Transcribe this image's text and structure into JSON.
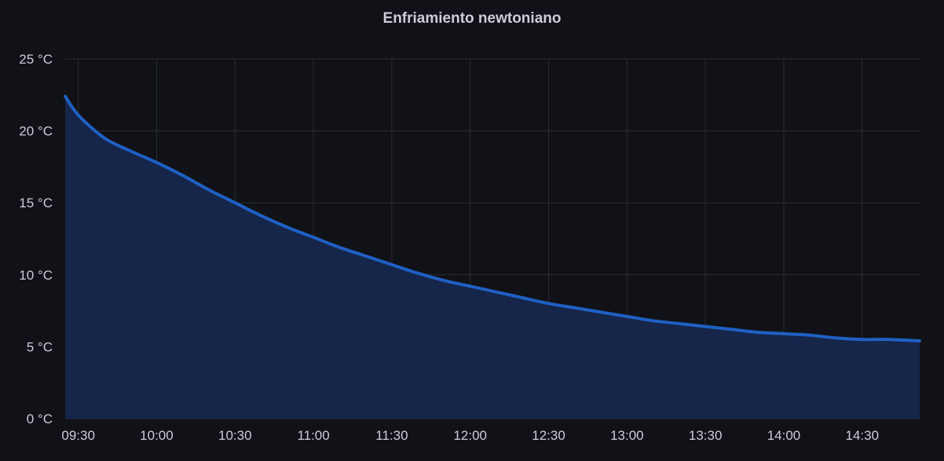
{
  "panel": {
    "title": "Enfriamiento newtoniano"
  },
  "chart_data": {
    "type": "area",
    "title": "Enfriamiento newtoniano",
    "xlabel": "",
    "ylabel": "",
    "unit": "°C",
    "x_range": [
      "09:25",
      "14:52"
    ],
    "ylim": [
      0,
      25
    ],
    "grid": true,
    "legend": "none",
    "x_ticks": [
      "09:30",
      "10:00",
      "10:30",
      "11:00",
      "11:30",
      "12:00",
      "12:30",
      "13:00",
      "13:30",
      "14:00",
      "14:30"
    ],
    "y_ticks": [
      "0 °C",
      "5 °C",
      "10 °C",
      "15 °C",
      "20 °C",
      "25 °C"
    ],
    "line_color": "#1f60c4",
    "fill_color": "#16254a",
    "series": [
      {
        "x": [
          "09:25",
          "09:30",
          "09:40",
          "09:50",
          "10:00",
          "10:10",
          "10:20",
          "10:30",
          "10:40",
          "10:50",
          "11:00",
          "11:10",
          "11:20",
          "11:30",
          "11:40",
          "11:50",
          "12:00",
          "12:10",
          "12:20",
          "12:30",
          "12:40",
          "12:50",
          "13:00",
          "13:10",
          "13:20",
          "13:30",
          "13:40",
          "13:50",
          "14:00",
          "14:10",
          "14:20",
          "14:30",
          "14:40",
          "14:52"
        ],
        "values": [
          22.4,
          21.1,
          19.5,
          18.6,
          17.8,
          16.9,
          15.9,
          15.0,
          14.1,
          13.3,
          12.6,
          11.9,
          11.3,
          10.7,
          10.1,
          9.6,
          9.2,
          8.8,
          8.4,
          8.0,
          7.7,
          7.4,
          7.1,
          6.8,
          6.6,
          6.4,
          6.2,
          6.0,
          5.9,
          5.8,
          5.6,
          5.5,
          5.5,
          5.4
        ]
      }
    ]
  }
}
